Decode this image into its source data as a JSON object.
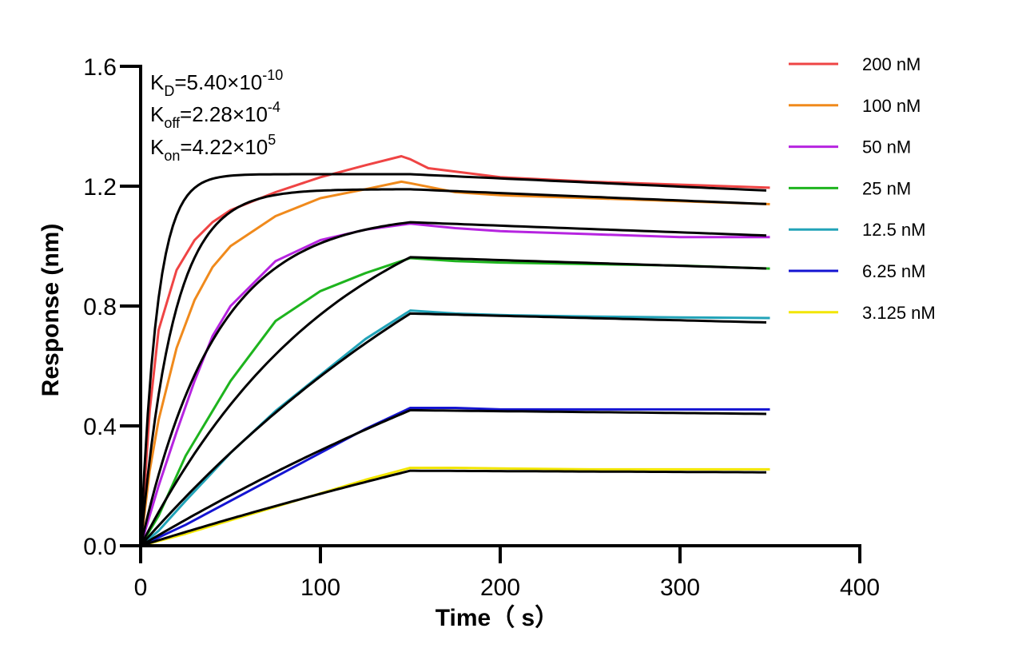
{
  "chart_data": {
    "type": "line",
    "title": "",
    "xlabel": "Time（ s）",
    "ylabel": "Response (nm)",
    "xlim": [
      0,
      400
    ],
    "ylim": [
      0,
      1.6
    ],
    "x_ticks": [
      "0",
      "100",
      "200",
      "300",
      "400"
    ],
    "y_ticks": [
      "0.0",
      "0.4",
      "0.8",
      "1.2",
      "1.6"
    ],
    "grid": false,
    "legend_position": "right",
    "association_end": 150,
    "dissociation_end": 350,
    "kinetics": {
      "KD": {
        "base": "K",
        "sub": "D",
        "value": "=5.40×10",
        "exp": "-10"
      },
      "Koff": {
        "base": "K",
        "sub": "off",
        "value": "=2.28×10",
        "exp": "-4"
      },
      "Kon": {
        "base": "K",
        "sub": "on",
        "value": "=4.22×10",
        "exp": "5"
      }
    },
    "fit_color": "#000000",
    "series": [
      {
        "name": "200 nM",
        "color": "#ef4444",
        "fit_plateau": 1.24,
        "fit_k": 0.11,
        "fit_end": 1.185,
        "measured": [
          [
            0,
            0
          ],
          [
            5,
            0.45
          ],
          [
            10,
            0.72
          ],
          [
            20,
            0.92
          ],
          [
            30,
            1.02
          ],
          [
            40,
            1.08
          ],
          [
            50,
            1.12
          ],
          [
            75,
            1.18
          ],
          [
            100,
            1.23
          ],
          [
            125,
            1.27
          ],
          [
            145,
            1.3
          ],
          [
            150,
            1.29
          ],
          [
            160,
            1.26
          ],
          [
            200,
            1.23
          ],
          [
            250,
            1.215
          ],
          [
            300,
            1.205
          ],
          [
            350,
            1.195
          ]
        ]
      },
      {
        "name": "100 nM",
        "color": "#f08a1c",
        "fit_plateau": 1.19,
        "fit_k": 0.055,
        "fit_end": 1.14,
        "measured": [
          [
            0,
            0
          ],
          [
            5,
            0.25
          ],
          [
            10,
            0.42
          ],
          [
            20,
            0.66
          ],
          [
            30,
            0.82
          ],
          [
            40,
            0.93
          ],
          [
            50,
            1.0
          ],
          [
            75,
            1.1
          ],
          [
            100,
            1.16
          ],
          [
            125,
            1.19
          ],
          [
            145,
            1.215
          ],
          [
            150,
            1.21
          ],
          [
            175,
            1.18
          ],
          [
            200,
            1.17
          ],
          [
            250,
            1.16
          ],
          [
            300,
            1.15
          ],
          [
            350,
            1.14
          ]
        ]
      },
      {
        "name": "50 nM",
        "color": "#b624e0",
        "fit_plateau": 1.11,
        "fit_k": 0.024,
        "fit_end": 1.035,
        "measured": [
          [
            0,
            0
          ],
          [
            10,
            0.2
          ],
          [
            20,
            0.38
          ],
          [
            30,
            0.55
          ],
          [
            40,
            0.7
          ],
          [
            50,
            0.8
          ],
          [
            75,
            0.95
          ],
          [
            100,
            1.02
          ],
          [
            125,
            1.055
          ],
          [
            150,
            1.075
          ],
          [
            175,
            1.06
          ],
          [
            200,
            1.05
          ],
          [
            250,
            1.04
          ],
          [
            300,
            1.03
          ],
          [
            350,
            1.03
          ]
        ]
      },
      {
        "name": "25 nM",
        "color": "#1eb41e",
        "fit_plateau": 1.3,
        "fit_k": 0.009,
        "fit_end": 0.925,
        "measured": [
          [
            0,
            0
          ],
          [
            10,
            0.1
          ],
          [
            25,
            0.3
          ],
          [
            40,
            0.45
          ],
          [
            50,
            0.55
          ],
          [
            75,
            0.75
          ],
          [
            100,
            0.85
          ],
          [
            125,
            0.91
          ],
          [
            150,
            0.96
          ],
          [
            175,
            0.95
          ],
          [
            200,
            0.945
          ],
          [
            250,
            0.94
          ],
          [
            300,
            0.935
          ],
          [
            350,
            0.925
          ]
        ]
      },
      {
        "name": "12.5 nM",
        "color": "#22a3b8",
        "fit_plateau": 1.75,
        "fit_k": 0.0039,
        "fit_end": 0.745,
        "measured": [
          [
            0,
            0
          ],
          [
            10,
            0.05
          ],
          [
            25,
            0.15
          ],
          [
            50,
            0.31
          ],
          [
            75,
            0.45
          ],
          [
            100,
            0.57
          ],
          [
            125,
            0.69
          ],
          [
            150,
            0.785
          ],
          [
            175,
            0.775
          ],
          [
            200,
            0.77
          ],
          [
            250,
            0.765
          ],
          [
            300,
            0.762
          ],
          [
            350,
            0.76
          ]
        ]
      },
      {
        "name": "6.25 nM",
        "color": "#1414d2",
        "fit_plateau": 1.55,
        "fit_k": 0.0023,
        "fit_end": 0.44,
        "measured": [
          [
            0,
            0
          ],
          [
            25,
            0.07
          ],
          [
            50,
            0.15
          ],
          [
            75,
            0.23
          ],
          [
            100,
            0.31
          ],
          [
            125,
            0.39
          ],
          [
            150,
            0.46
          ],
          [
            175,
            0.46
          ],
          [
            200,
            0.455
          ],
          [
            250,
            0.455
          ],
          [
            300,
            0.455
          ],
          [
            350,
            0.455
          ]
        ]
      },
      {
        "name": "3.125 nM",
        "color": "#f2e600",
        "fit_plateau": 1.2,
        "fit_k": 0.00156,
        "fit_end": 0.245,
        "measured": [
          [
            0,
            0
          ],
          [
            25,
            0.04
          ],
          [
            50,
            0.085
          ],
          [
            75,
            0.13
          ],
          [
            100,
            0.175
          ],
          [
            125,
            0.22
          ],
          [
            150,
            0.26
          ],
          [
            175,
            0.26
          ],
          [
            200,
            0.258
          ],
          [
            250,
            0.255
          ],
          [
            300,
            0.255
          ],
          [
            350,
            0.255
          ]
        ]
      }
    ]
  }
}
